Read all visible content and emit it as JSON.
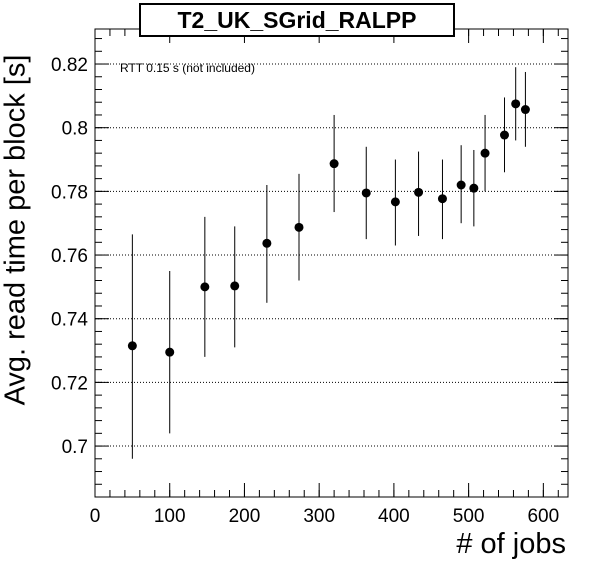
{
  "chart_data": {
    "type": "scatter",
    "title": "T2_UK_SGrid_RALPP",
    "xlabel": "# of jobs",
    "ylabel": "Avg. read time per block [s]",
    "annotation": "RTT 0.15 s (not included)",
    "xlim": [
      0,
      633
    ],
    "ylim": [
      0.684,
      0.831
    ],
    "x_ticks": [
      0,
      100,
      200,
      300,
      400,
      500,
      600
    ],
    "x_tick_labels": [
      "0",
      "100",
      "200",
      "300",
      "400",
      "500",
      "600"
    ],
    "y_ticks": [
      0.7,
      0.72,
      0.74,
      0.76,
      0.78,
      0.8,
      0.82
    ],
    "y_tick_labels": [
      "0.7",
      "0.72",
      "0.74",
      "0.76",
      "0.78",
      "0.8",
      "0.82"
    ],
    "grid": "horizontal dotted",
    "series": [
      {
        "points": [
          {
            "x": 50,
            "y": 0.7315,
            "ylow": 0.696,
            "yhigh": 0.7665
          },
          {
            "x": 100,
            "y": 0.7295,
            "ylow": 0.704,
            "yhigh": 0.755
          },
          {
            "x": 147,
            "y": 0.75,
            "ylow": 0.728,
            "yhigh": 0.772
          },
          {
            "x": 187,
            "y": 0.7503,
            "ylow": 0.731,
            "yhigh": 0.769
          },
          {
            "x": 230,
            "y": 0.7637,
            "ylow": 0.745,
            "yhigh": 0.782
          },
          {
            "x": 273,
            "y": 0.7687,
            "ylow": 0.752,
            "yhigh": 0.7855
          },
          {
            "x": 320,
            "y": 0.7887,
            "ylow": 0.7735,
            "yhigh": 0.804
          },
          {
            "x": 363,
            "y": 0.7795,
            "ylow": 0.765,
            "yhigh": 0.794
          },
          {
            "x": 402,
            "y": 0.7767,
            "ylow": 0.763,
            "yhigh": 0.79
          },
          {
            "x": 433,
            "y": 0.7797,
            "ylow": 0.766,
            "yhigh": 0.7925
          },
          {
            "x": 465,
            "y": 0.7777,
            "ylow": 0.765,
            "yhigh": 0.79
          },
          {
            "x": 490,
            "y": 0.782,
            "ylow": 0.77,
            "yhigh": 0.7945
          },
          {
            "x": 507,
            "y": 0.781,
            "ylow": 0.769,
            "yhigh": 0.793
          },
          {
            "x": 522,
            "y": 0.792,
            "ylow": 0.78,
            "yhigh": 0.804
          },
          {
            "x": 548,
            "y": 0.7977,
            "ylow": 0.786,
            "yhigh": 0.8095
          },
          {
            "x": 563,
            "y": 0.8075,
            "ylow": 0.796,
            "yhigh": 0.819
          },
          {
            "x": 576,
            "y": 0.8057,
            "ylow": 0.794,
            "yhigh": 0.8175
          }
        ]
      }
    ]
  }
}
